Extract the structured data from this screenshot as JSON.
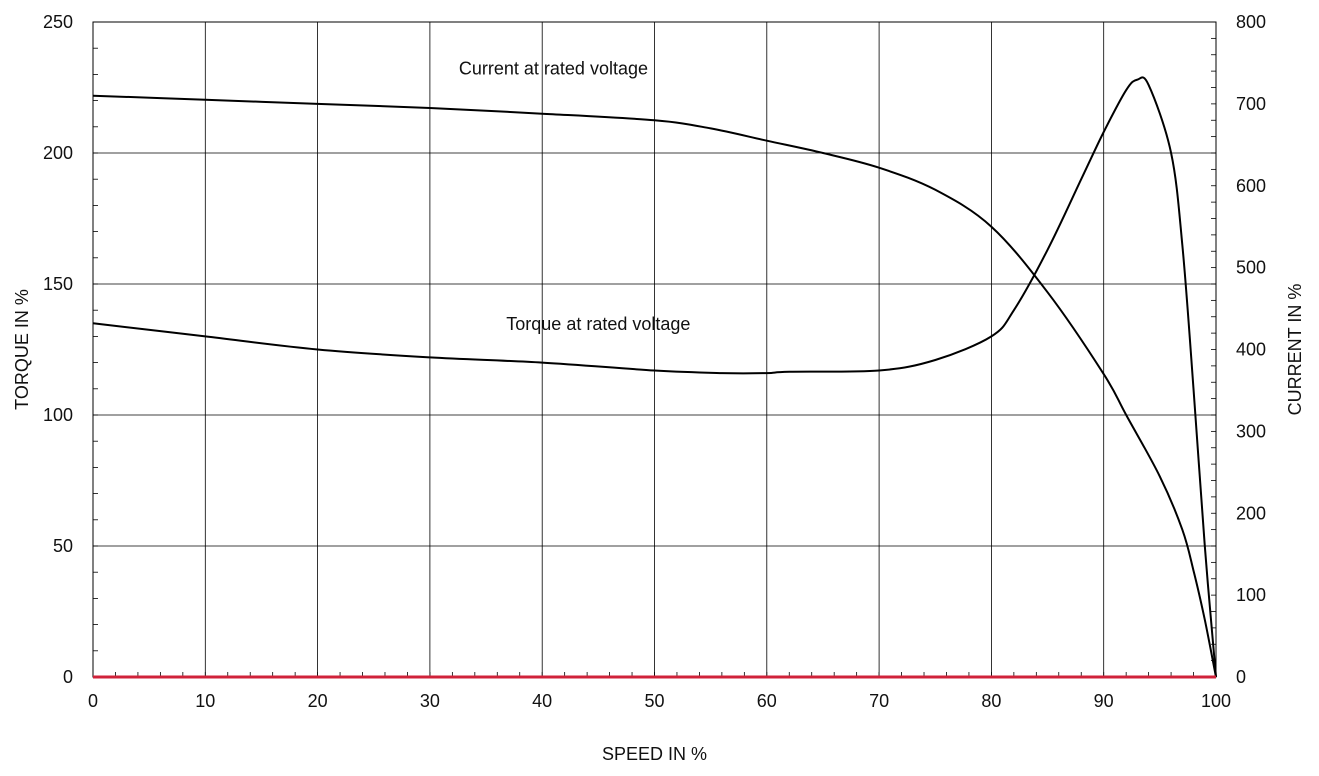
{
  "chart_data": {
    "type": "line",
    "xlabel": "SPEED IN %",
    "ylabel": "TORQUE IN %",
    "y2label": "CURRENT IN %",
    "xlim": [
      0,
      100
    ],
    "ylim": [
      0,
      250
    ],
    "y2lim": [
      0,
      800
    ],
    "x_ticks": [
      0,
      10,
      20,
      30,
      40,
      50,
      60,
      70,
      80,
      90,
      100
    ],
    "y_ticks": [
      0,
      50,
      100,
      150,
      200,
      250
    ],
    "y2_ticks": [
      0,
      100,
      200,
      300,
      400,
      500,
      600,
      700,
      800
    ],
    "grid": true,
    "baseline_color": "#d0223a",
    "series": [
      {
        "name": "Torque at rated voltage",
        "axis": "left",
        "color": "#000000",
        "x": [
          0,
          10,
          20,
          30,
          40,
          50,
          56,
          60,
          62,
          70,
          75,
          80,
          82,
          85,
          88,
          90,
          92,
          93,
          94,
          96,
          97,
          98,
          99,
          100
        ],
        "y": [
          135,
          130,
          125,
          122,
          120,
          117,
          116,
          116,
          116.5,
          117,
          121,
          130,
          140,
          163,
          190,
          208,
          224,
          228,
          226,
          200,
          165,
          110,
          50,
          0
        ]
      },
      {
        "name": "Current at rated voltage",
        "axis": "right",
        "color": "#000000",
        "x": [
          0,
          10,
          20,
          30,
          40,
          50,
          55,
          60,
          65,
          70,
          75,
          80,
          85,
          90,
          92,
          95,
          97,
          98,
          99,
          100
        ],
        "y": [
          710,
          705,
          700,
          695,
          688,
          680,
          670,
          655,
          640,
          622,
          595,
          550,
          470,
          370,
          320,
          245,
          180,
          130,
          70,
          0
        ]
      }
    ],
    "annotations": [
      {
        "text": "Current at rated voltage",
        "x": 41,
        "y": 230,
        "axis": "left"
      },
      {
        "text": "Torque at rated voltage",
        "x": 45,
        "y": 132.5,
        "axis": "left"
      }
    ]
  }
}
